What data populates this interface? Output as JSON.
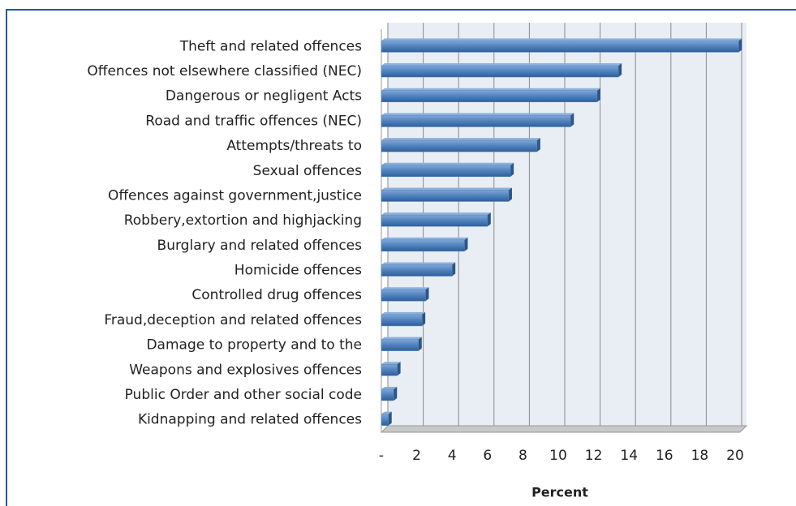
{
  "chart_data": {
    "type": "bar",
    "orientation": "horizontal",
    "x_label": "Percent",
    "categories": [
      "Theft and related offences",
      "Offences not elsewhere classified (NEC)",
      "Dangerous or negligent Acts",
      "Road and traffic offences (NEC)",
      "Attempts/threats to",
      "Sexual offences",
      "Offences against government,justice",
      "Robbery,extortion and highjacking",
      "Burglary and related offences",
      "Homicide offences",
      "Controlled drug offences",
      "Fraud,deception and related offences",
      "Damage to property and to the",
      "Weapons and explosives offences",
      "Public Order and other social code",
      "Kidnapping and related offences"
    ],
    "values": [
      20.2,
      13.4,
      12.2,
      10.7,
      8.8,
      7.3,
      7.2,
      6.0,
      4.7,
      4.0,
      2.5,
      2.3,
      2.1,
      0.9,
      0.7,
      0.4
    ],
    "color": "#4f81bd",
    "xlim": [
      0,
      20
    ],
    "xticks": [
      {
        "value": 0,
        "label": "-"
      },
      2,
      4,
      6,
      8,
      10,
      12,
      14,
      16,
      18,
      20
    ],
    "grid": true
  }
}
